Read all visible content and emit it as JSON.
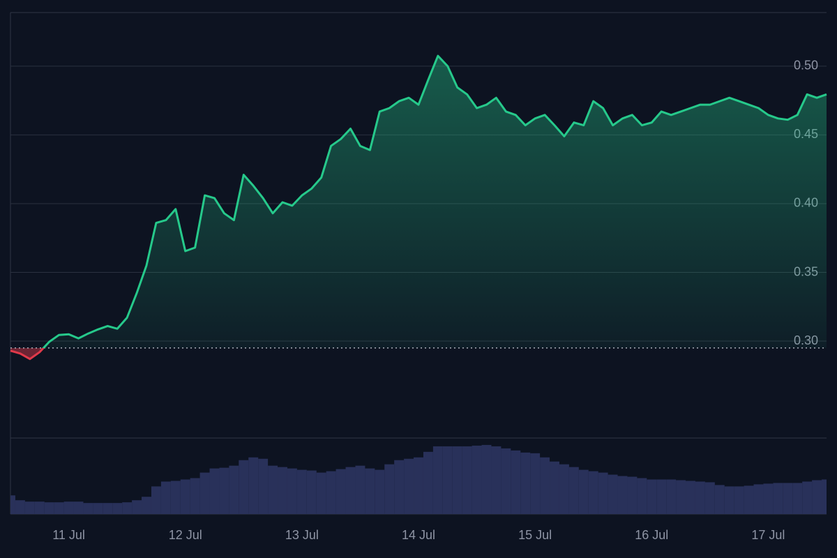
{
  "chart_data": {
    "type": "line",
    "categories": [
      null,
      null,
      null,
      null,
      null,
      null,
      "11 Jul",
      null,
      null,
      null,
      null,
      null,
      null,
      null,
      null,
      null,
      null,
      null,
      "12 Jul",
      null,
      null,
      null,
      null,
      null,
      null,
      null,
      null,
      null,
      null,
      null,
      "13 Jul",
      null,
      null,
      null,
      null,
      null,
      null,
      null,
      null,
      null,
      null,
      null,
      "14 Jul",
      null,
      null,
      null,
      null,
      null,
      null,
      null,
      null,
      null,
      null,
      null,
      "15 Jul",
      null,
      null,
      null,
      null,
      null,
      null,
      null,
      null,
      null,
      null,
      null,
      "16 Jul",
      null,
      null,
      null,
      null,
      null,
      null,
      null,
      null,
      null,
      null,
      null,
      "17 Jul",
      null,
      null,
      null,
      null,
      null,
      null
    ],
    "series": [
      {
        "color": "#26c98b",
        "down_color": "#e0394a",
        "baseline": 0.295,
        "values": [
          0.293,
          0.291,
          0.287,
          0.292,
          0.2995,
          0.3045,
          0.305,
          0.302,
          0.3055,
          0.3085,
          0.311,
          0.309,
          0.317,
          0.335,
          0.355,
          0.386,
          0.388,
          0.396,
          0.3655,
          0.368,
          0.406,
          0.404,
          0.393,
          0.388,
          0.421,
          0.413,
          0.404,
          0.393,
          0.401,
          0.3985,
          0.406,
          0.411,
          0.419,
          0.442,
          0.447,
          0.4545,
          0.442,
          0.439,
          0.467,
          0.4695,
          0.4745,
          0.477,
          0.472,
          0.49,
          0.5075,
          0.5,
          0.4845,
          0.4795,
          0.4695,
          0.472,
          0.477,
          0.467,
          0.4645,
          0.457,
          0.462,
          0.4645,
          0.457,
          0.449,
          0.459,
          0.457,
          0.4745,
          0.4695,
          0.457,
          0.462,
          0.4645,
          0.457,
          0.459,
          0.467,
          0.4645,
          0.467,
          0.4695,
          0.472,
          0.472,
          0.4745,
          0.477,
          0.4745,
          0.472,
          0.4695,
          0.4645,
          0.462,
          0.461,
          0.4645,
          0.4795,
          0.477,
          0.4795
        ]
      },
      {
        "color": "#29315a",
        "axis": "y2",
        "values": [
          27,
          20,
          18,
          18,
          17,
          17,
          18,
          18,
          16,
          16,
          16,
          16,
          17,
          20,
          25,
          40,
          47,
          48,
          50,
          52,
          60,
          66,
          67,
          70,
          78,
          82,
          80,
          70,
          68,
          66,
          64,
          63,
          60,
          62,
          65,
          68,
          70,
          66,
          64,
          72,
          78,
          80,
          82,
          90,
          98,
          98,
          98,
          98,
          99,
          100,
          98,
          95,
          92,
          89,
          88,
          82,
          76,
          72,
          68,
          64,
          62,
          60,
          57,
          55,
          54,
          52,
          50,
          50,
          50,
          49,
          48,
          47,
          46,
          42,
          40,
          40,
          41,
          43,
          44,
          45,
          45,
          45,
          47,
          49,
          50
        ]
      }
    ],
    "ylim": [
      0.2295,
      0.539
    ],
    "yticks": [
      {
        "value": 0.3,
        "label": "0.30"
      },
      {
        "value": 0.35,
        "label": "0.35"
      },
      {
        "value": 0.4,
        "label": "0.40"
      },
      {
        "value": 0.45,
        "label": "0.45"
      },
      {
        "value": 0.5,
        "label": "0.50"
      }
    ],
    "y2lim": [
      0,
      110
    ],
    "grid": true
  }
}
